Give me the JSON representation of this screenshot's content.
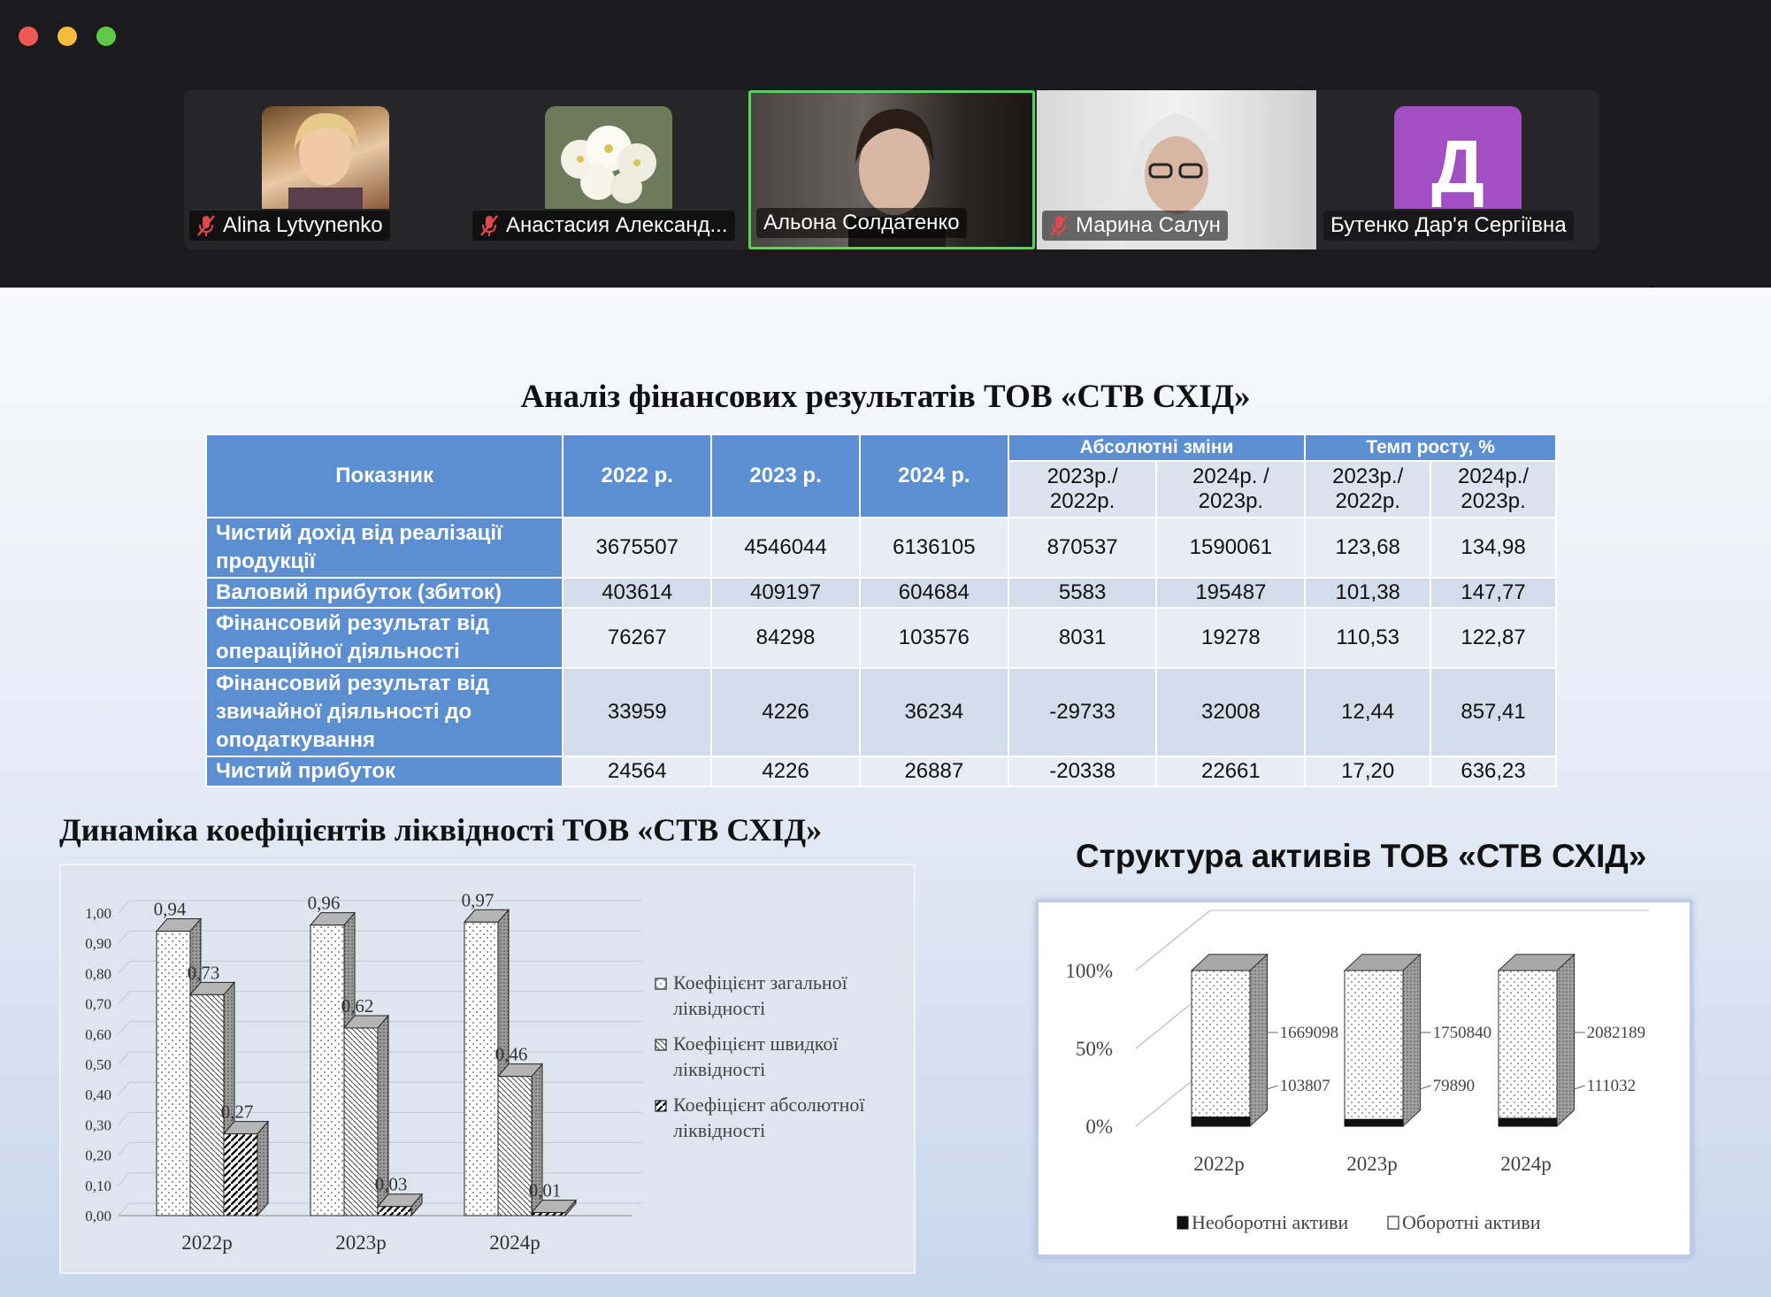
{
  "window": {
    "participants": [
      {
        "name": "Alina Lytvynenko",
        "muted": true
      },
      {
        "name": "Анастасия Александ...",
        "muted": true
      },
      {
        "name": "Альона Солдатенко",
        "muted": false,
        "active": true
      },
      {
        "name": "Марина Салун",
        "muted": true
      },
      {
        "name": "Бутенко Дар'я Сергіївна",
        "muted": false,
        "initial": "Д"
      }
    ]
  },
  "slide": {
    "table_title": "Аналіз фінансових результатів ТОВ «СТВ СХІД»",
    "table": {
      "header": {
        "indicator": "Показник",
        "y2022": "2022 р.",
        "y2023": "2023 р.",
        "y2024": "2024 р.",
        "abs": "Абсолютні зміни",
        "growth": "Темп росту, %",
        "abs1a": "2023р./",
        "abs1b": "2022р.",
        "abs2a": "2024р. /",
        "abs2b": "2023р.",
        "gr1a": "2023р./",
        "gr1b": "2022р.",
        "gr2a": "2024р./",
        "gr2b": "2023р."
      },
      "rows": [
        {
          "label": "Чистий дохід від реалізації продукції",
          "v": [
            "3675507",
            "4546044",
            "6136105",
            "870537",
            "1590061",
            "123,68",
            "134,98"
          ]
        },
        {
          "label": "Валовий прибуток (збиток)",
          "v": [
            "403614",
            "409197",
            "604684",
            "5583",
            "195487",
            "101,38",
            "147,77"
          ]
        },
        {
          "label": "Фінансовий результат від операційної діяльності",
          "v": [
            "76267",
            "84298",
            "103576",
            "8031",
            "19278",
            "110,53",
            "122,87"
          ]
        },
        {
          "label": "Фінансовий результат від звичайної діяльності до оподаткування",
          "v": [
            "33959",
            "4226",
            "36234",
            "-29733",
            "32008",
            "12,44",
            "857,41"
          ]
        },
        {
          "label": "Чистий прибуток",
          "v": [
            "24564",
            "4226",
            "26887",
            "-20338",
            "22661",
            "17,20",
            "636,23"
          ]
        }
      ]
    },
    "liquidity_title": "Динаміка коефіцієнтів ліквідності ТОВ «СТВ СХІД»",
    "assets_title": "Структура активів ТОВ «СТВ СХІД»"
  },
  "chart_data": [
    {
      "type": "bar",
      "title": "Динаміка коефіцієнтів ліквідності ТОВ «СТВ СХІД»",
      "categories": [
        "2022р",
        "2023р",
        "2024р"
      ],
      "ylim": [
        0,
        1.0
      ],
      "yticks": [
        "0,00",
        "0,10",
        "0,20",
        "0,30",
        "0,40",
        "0,50",
        "0,60",
        "0,70",
        "0,80",
        "0,90",
        "1,00"
      ],
      "series": [
        {
          "name": "Коефіцієнт загальної ліквідності",
          "values": [
            0.94,
            0.96,
            0.97
          ],
          "labels": [
            "0,94",
            "0,96",
            "0,97"
          ]
        },
        {
          "name": "Коефіцієнт швидкої ліквідності",
          "values": [
            0.73,
            0.62,
            0.46
          ],
          "labels": [
            "0,73",
            "0,62",
            "0,46"
          ]
        },
        {
          "name": "Коефіцієнт абсолютної ліквідності",
          "values": [
            0.27,
            0.03,
            0.01
          ],
          "labels": [
            "0,27",
            "0,03",
            "0,01"
          ]
        }
      ],
      "legend_lines": [
        [
          "Коефіцієнт загальної",
          "ліквідності"
        ],
        [
          "Коефіцієнт швидкої",
          "ліквідності"
        ],
        [
          "Коефіцієнт абсолютної",
          "ліквідності"
        ]
      ],
      "grid": true,
      "legend": "right"
    },
    {
      "type": "bar",
      "stacked": "percent",
      "title": "Структура активів ТОВ «СТВ СХІД»",
      "categories": [
        "2022р",
        "2023р",
        "2024р"
      ],
      "yticks": [
        "0%",
        "50%",
        "100%"
      ],
      "series": [
        {
          "name": "Необоротні активи",
          "values": [
            103807,
            79890,
            111032
          ]
        },
        {
          "name": "Оборотні активи",
          "values": [
            1669098,
            1750840,
            2082189
          ]
        }
      ],
      "legend": "bottom"
    }
  ]
}
